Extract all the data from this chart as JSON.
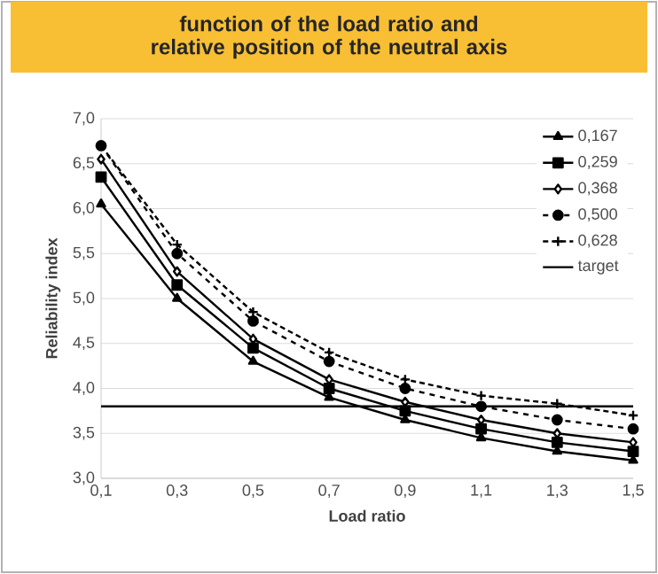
{
  "chart_data": {
    "type": "line",
    "title": "function of the load ratio and relative position of the neutral axis",
    "xlabel": "Load ratio",
    "ylabel": "Reliability index",
    "x": [
      0.1,
      0.3,
      0.5,
      0.7,
      0.9,
      1.1,
      1.3,
      1.5
    ],
    "xlim": [
      0.1,
      1.5
    ],
    "xticks": [
      {
        "value": 0.1,
        "label": "0,1"
      },
      {
        "value": 0.3,
        "label": "0,3"
      },
      {
        "value": 0.5,
        "label": "0,5"
      },
      {
        "value": 0.7,
        "label": "0,7"
      },
      {
        "value": 0.9,
        "label": "0,9"
      },
      {
        "value": 1.1,
        "label": "1,1"
      },
      {
        "value": 1.3,
        "label": "1,3"
      },
      {
        "value": 1.5,
        "label": "1,5"
      }
    ],
    "ylim": [
      3.0,
      7.0
    ],
    "yticks": [
      {
        "value": 3.0,
        "label": "3,0"
      },
      {
        "value": 3.5,
        "label": "3,5"
      },
      {
        "value": 4.0,
        "label": "4,0"
      },
      {
        "value": 4.5,
        "label": "4,5"
      },
      {
        "value": 5.0,
        "label": "5,0"
      },
      {
        "value": 5.5,
        "label": "5,5"
      },
      {
        "value": 6.0,
        "label": "6,0"
      },
      {
        "value": 6.5,
        "label": "6,5"
      },
      {
        "value": 7.0,
        "label": "7,0"
      }
    ],
    "grid": "y",
    "legend": "top right",
    "series": [
      {
        "name": "0,167",
        "color": "#000000",
        "marker": "triangle",
        "line_style": "solid",
        "values": [
          6.05,
          5.0,
          4.3,
          3.9,
          3.65,
          3.45,
          3.3,
          3.2
        ]
      },
      {
        "name": "0,259",
        "color": "#000000",
        "marker": "square",
        "line_style": "solid",
        "values": [
          6.35,
          5.15,
          4.45,
          4.0,
          3.75,
          3.55,
          3.4,
          3.3
        ]
      },
      {
        "name": "0,368",
        "color": "#000000",
        "marker": "diamond",
        "line_style": "solid",
        "values": [
          6.55,
          5.3,
          4.55,
          4.1,
          3.85,
          3.65,
          3.5,
          3.4
        ]
      },
      {
        "name": "0,500",
        "color": "#000000",
        "marker": "circle",
        "line_style": "dashed",
        "values": [
          6.7,
          5.5,
          4.75,
          4.3,
          4.0,
          3.8,
          3.65,
          3.55
        ]
      },
      {
        "name": "0,628",
        "color": "#000000",
        "marker": "cross",
        "line_style": "dotted",
        "values": [
          6.7,
          5.6,
          4.85,
          4.4,
          4.1,
          3.92,
          3.83,
          3.7
        ]
      },
      {
        "name": "target",
        "color": "#000000",
        "marker": "none",
        "line_style": "solid",
        "values": [
          3.8,
          3.8,
          3.8,
          3.8,
          3.8,
          3.8,
          3.8,
          3.8
        ]
      }
    ]
  }
}
